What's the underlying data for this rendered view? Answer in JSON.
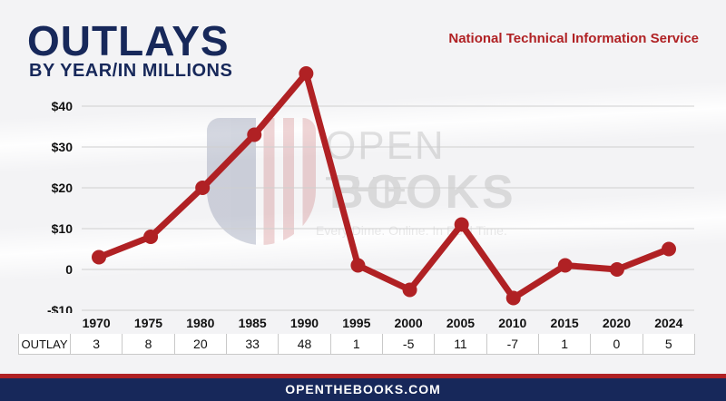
{
  "header": {
    "title": "OUTLAYS",
    "subtitle": "BY YEAR/IN MILLIONS",
    "source": "National Technical Information Service"
  },
  "watermark": {
    "line1": "OPEN THE",
    "line2": "BOOKS",
    "tagline": "Every Dime. Online. In Real Time."
  },
  "table": {
    "row_label": "OUTLAY"
  },
  "footer": {
    "text": "OPENTHEBOOKS.COM"
  },
  "colors": {
    "line": "#b02124",
    "navy": "#17285a",
    "grid": "#cfcfcf"
  },
  "chart_data": {
    "type": "line",
    "title": "OUTLAYS",
    "subtitle": "BY YEAR/IN MILLIONS",
    "categories": [
      "1970",
      "1975",
      "1980",
      "1985",
      "1990",
      "1995",
      "2000",
      "2005",
      "2010",
      "2015",
      "2020",
      "2024"
    ],
    "values": [
      3,
      8,
      20,
      33,
      48,
      1,
      -5,
      11,
      -7,
      1,
      0,
      5
    ],
    "ylim": [
      -10,
      45
    ],
    "yticks": [
      -10,
      0,
      10,
      20,
      30,
      40
    ],
    "ytick_labels": [
      "-$10",
      "0",
      "$10",
      "$20",
      "$30",
      "$40"
    ],
    "grid": true,
    "color": "#b02124"
  }
}
